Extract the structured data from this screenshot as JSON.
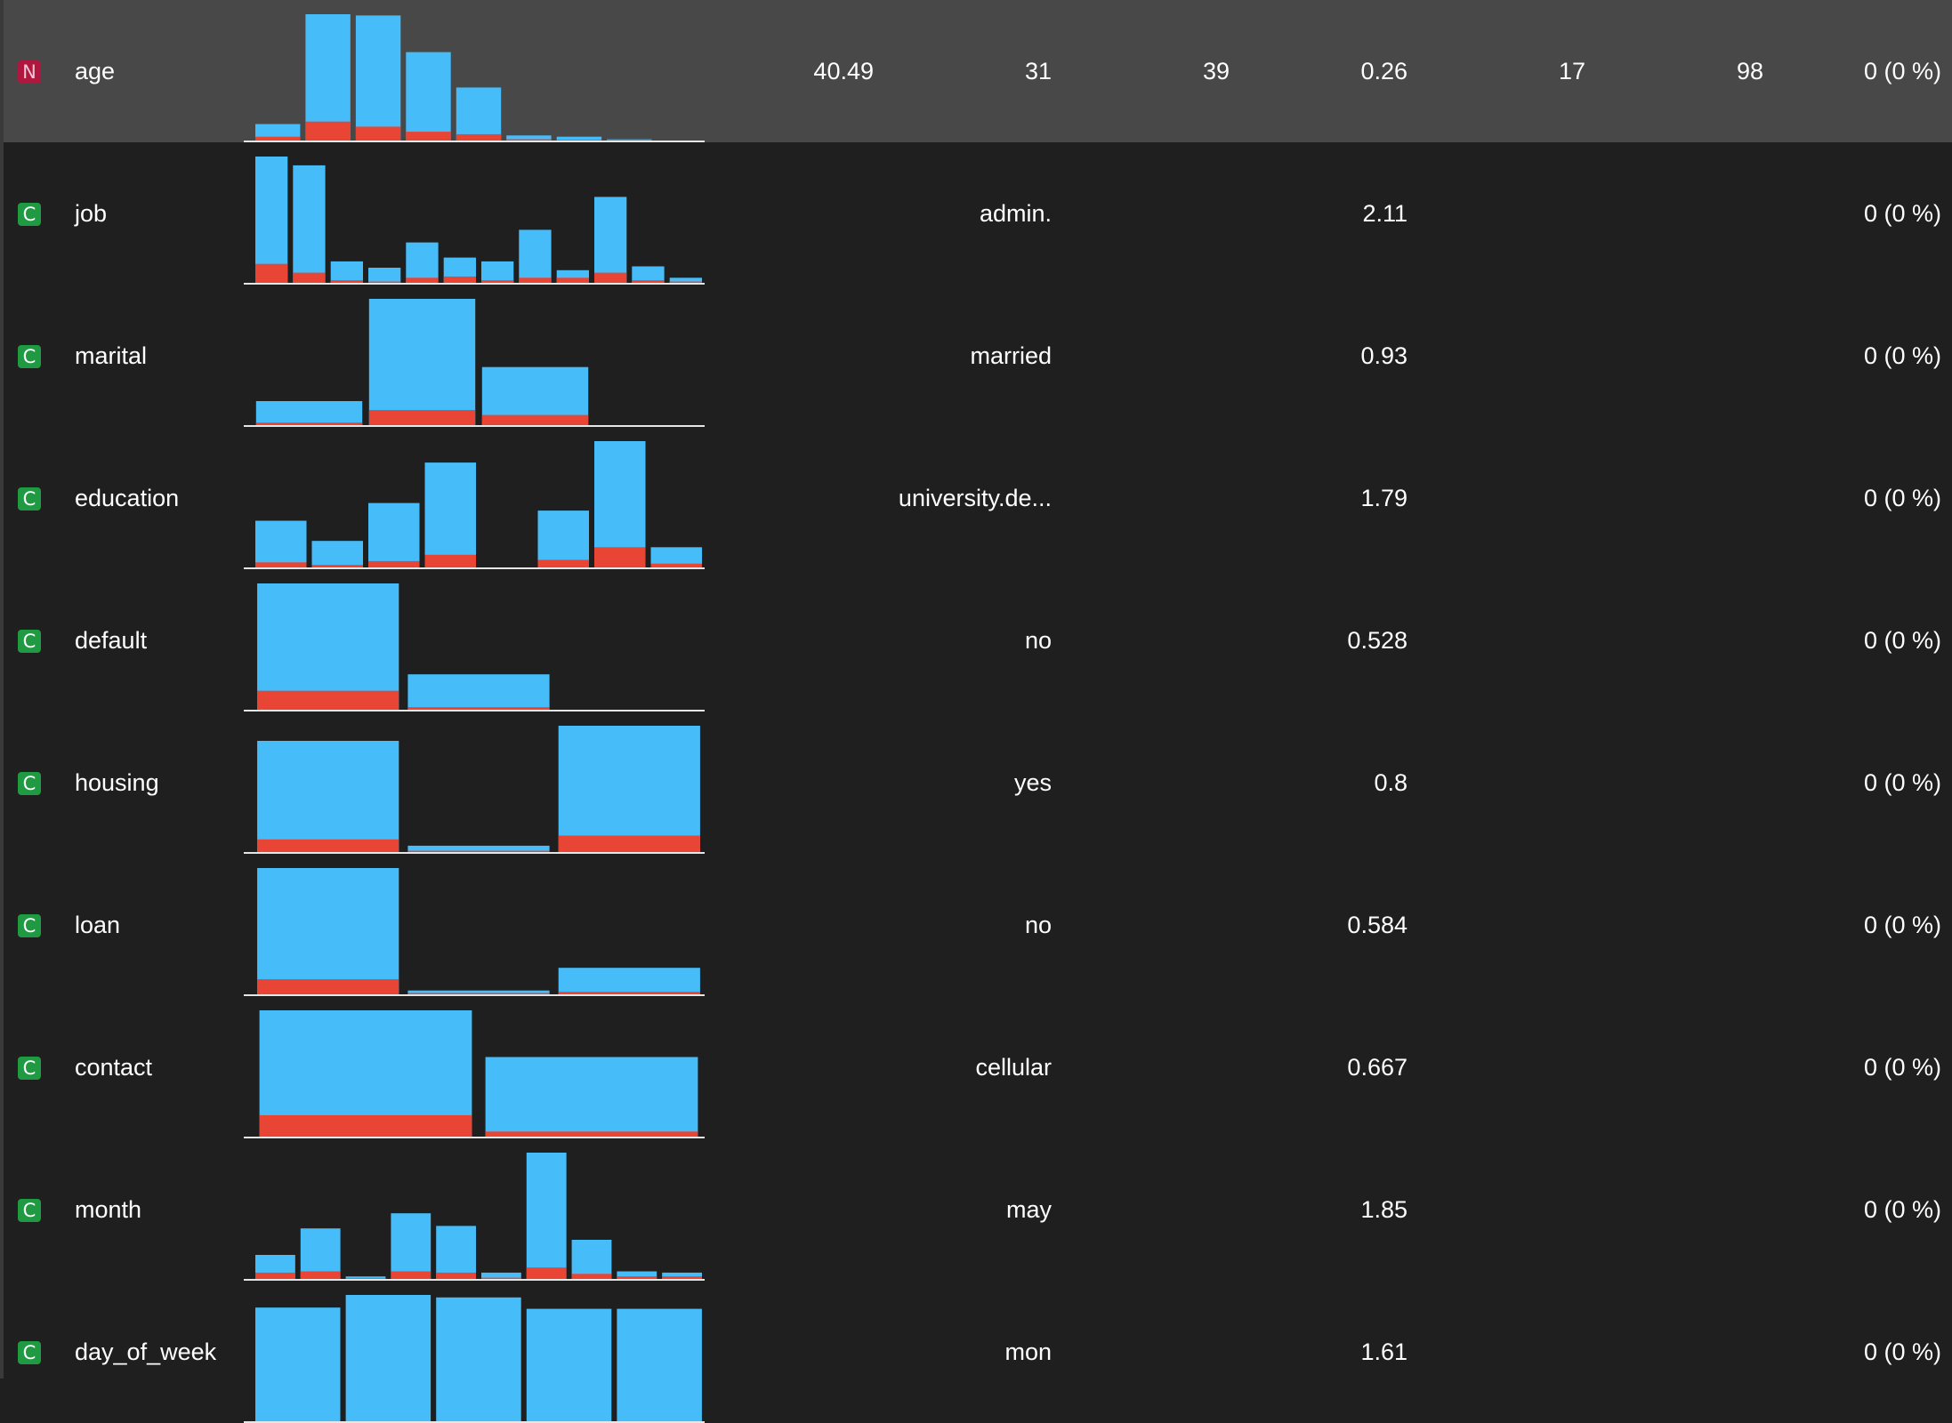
{
  "colors": {
    "background": "#1f1f1f",
    "selected_row": "#484848",
    "bar_total": "#46bdf8",
    "bar_highlight": "#e94534",
    "baseline": "#e6e6e6",
    "numeric_badge": "#b0173f",
    "categorical_badge": "#1f9a43"
  },
  "variables": [
    {
      "type": "numeric",
      "type_letter": "N",
      "name": "age",
      "selected": true,
      "mean": "40.49",
      "mode": "31",
      "median": "39",
      "dispersion": "0.26",
      "min": "17",
      "max": "98",
      "missing": "0 (0 %)",
      "chart_data": {
        "type": "bar",
        "stacked": true,
        "x": [
          "bin1",
          "bin2",
          "bin3",
          "bin4",
          "bin5",
          "bin6",
          "bin7",
          "bin8",
          "bin9"
        ],
        "series": [
          {
            "values": [
              13,
              100,
              99,
              70,
              42,
              4,
              3,
              1,
              0
            ]
          },
          {
            "values": [
              3,
              15,
              11,
              7,
              5,
              1,
              0.5,
              0.5,
              0
            ]
          }
        ]
      }
    },
    {
      "type": "categorical",
      "type_letter": "C",
      "name": "job",
      "selected": false,
      "mean": "",
      "mode": "admin.",
      "median": "",
      "dispersion": "2.11",
      "min": "",
      "max": "",
      "missing": "0 (0 %)",
      "chart_data": {
        "type": "bar",
        "stacked": true,
        "x": [
          "cat1",
          "cat2",
          "cat3",
          "cat4",
          "cat5",
          "cat6",
          "cat7",
          "cat8",
          "cat9",
          "cat10",
          "cat11",
          "cat12"
        ],
        "series": [
          {
            "values": [
              100,
              93,
              17,
              12,
              32,
              20,
              17,
              42,
              10,
              68,
              13,
              4
            ]
          },
          {
            "values": [
              15,
              8,
              2,
              1,
              4,
              5,
              2,
              4,
              4,
              8,
              2,
              1
            ]
          }
        ]
      }
    },
    {
      "type": "categorical",
      "type_letter": "C",
      "name": "marital",
      "selected": false,
      "mean": "",
      "mode": "married",
      "median": "",
      "dispersion": "0.93",
      "min": "",
      "max": "",
      "missing": "0 (0 %)",
      "chart_data": {
        "type": "bar",
        "stacked": true,
        "x": [
          "cat1",
          "cat2",
          "cat3",
          "cat4"
        ],
        "series": [
          {
            "values": [
              19,
              100,
              46,
              0
            ]
          },
          {
            "values": [
              2,
              12,
              8,
              0
            ]
          }
        ]
      }
    },
    {
      "type": "categorical",
      "type_letter": "C",
      "name": "education",
      "selected": false,
      "mean": "",
      "mode": "university.de...",
      "median": "",
      "dispersion": "1.79",
      "min": "",
      "max": "",
      "missing": "0 (0 %)",
      "chart_data": {
        "type": "bar",
        "stacked": true,
        "x": [
          "cat1",
          "cat2",
          "cat3",
          "cat4",
          "cat5",
          "cat6",
          "cat7",
          "cat8"
        ],
        "series": [
          {
            "values": [
              37,
              21,
              51,
              83,
              0,
              45,
              100,
              16
            ]
          },
          {
            "values": [
              4,
              2,
              5,
              10,
              0,
              6,
              16,
              3
            ]
          }
        ]
      }
    },
    {
      "type": "categorical",
      "type_letter": "C",
      "name": "default",
      "selected": false,
      "mean": "",
      "mode": "no",
      "median": "",
      "dispersion": "0.528",
      "min": "",
      "max": "",
      "missing": "0 (0 %)",
      "chart_data": {
        "type": "bar",
        "stacked": true,
        "x": [
          "cat1",
          "cat2",
          "cat3"
        ],
        "series": [
          {
            "values": [
              100,
              28,
              0
            ]
          },
          {
            "values": [
              15,
              2,
              0
            ]
          }
        ]
      }
    },
    {
      "type": "categorical",
      "type_letter": "C",
      "name": "housing",
      "selected": false,
      "mean": "",
      "mode": "yes",
      "median": "",
      "dispersion": "0.8",
      "min": "",
      "max": "",
      "missing": "0 (0 %)",
      "chart_data": {
        "type": "bar",
        "stacked": true,
        "x": [
          "cat1",
          "cat2",
          "cat3"
        ],
        "series": [
          {
            "values": [
              88,
              5,
              100
            ]
          },
          {
            "values": [
              10,
              1,
              13
            ]
          }
        ]
      }
    },
    {
      "type": "categorical",
      "type_letter": "C",
      "name": "loan",
      "selected": false,
      "mean": "",
      "mode": "no",
      "median": "",
      "dispersion": "0.584",
      "min": "",
      "max": "",
      "missing": "0 (0 %)",
      "chart_data": {
        "type": "bar",
        "stacked": true,
        "x": [
          "cat1",
          "cat2",
          "cat3"
        ],
        "series": [
          {
            "values": [
              100,
              3,
              21
            ]
          },
          {
            "values": [
              12,
              1,
              2
            ]
          }
        ]
      }
    },
    {
      "type": "categorical",
      "type_letter": "C",
      "name": "contact",
      "selected": false,
      "mean": "",
      "mode": "cellular",
      "median": "",
      "dispersion": "0.667",
      "min": "",
      "max": "",
      "missing": "0 (0 %)",
      "chart_data": {
        "type": "bar",
        "stacked": true,
        "x": [
          "cat1",
          "cat2"
        ],
        "series": [
          {
            "values": [
              100,
              63
            ]
          },
          {
            "values": [
              17,
              4
            ]
          }
        ]
      }
    },
    {
      "type": "categorical",
      "type_letter": "C",
      "name": "month",
      "selected": false,
      "mean": "",
      "mode": "may",
      "median": "",
      "dispersion": "1.85",
      "min": "",
      "max": "",
      "missing": "0 (0 %)",
      "chart_data": {
        "type": "bar",
        "stacked": true,
        "x": [
          "cat1",
          "cat2",
          "cat3",
          "cat4",
          "cat5",
          "cat6",
          "cat7",
          "cat8",
          "cat9",
          "cat10"
        ],
        "series": [
          {
            "values": [
              19,
              40,
              2,
              52,
              42,
              5,
              100,
              31,
              6,
              5
            ]
          },
          {
            "values": [
              5,
              6,
              0.5,
              6,
              5,
              1,
              9,
              4,
              2,
              2
            ]
          }
        ]
      }
    },
    {
      "type": "categorical",
      "type_letter": "C",
      "name": "day_of_week",
      "selected": false,
      "mean": "",
      "mode": "mon",
      "median": "",
      "dispersion": "1.61",
      "min": "",
      "max": "",
      "missing": "0 (0 %)",
      "chart_data": {
        "type": "bar",
        "stacked": true,
        "x": [
          "cat1",
          "cat2",
          "cat3",
          "cat4",
          "cat5"
        ],
        "series": [
          {
            "values": [
              90,
              100,
              98,
              89,
              89
            ]
          },
          {
            "values": [
              0,
              0,
              0,
              0,
              0
            ]
          }
        ]
      }
    }
  ]
}
